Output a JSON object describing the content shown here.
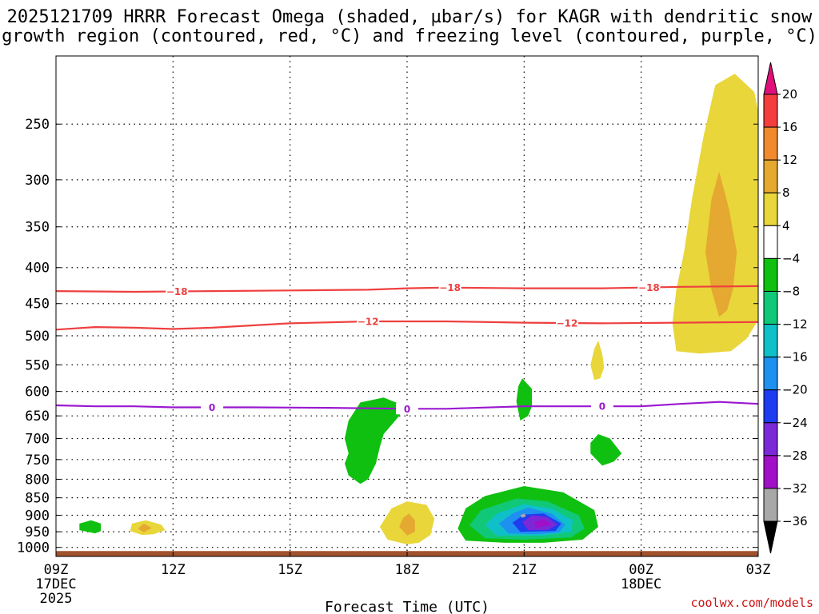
{
  "chart_data": {
    "type": "heatmap",
    "title_line1": "2025121709 HRRR Forecast Omega (shaded, µbar/s) for KAGR with dendritic snow",
    "title_line2": "growth region (contoured, red, °C) and freezing level (contoured, purple, °C)",
    "xlabel": "Forecast Time (UTC)",
    "ylabel": "",
    "x_ticks": [
      {
        "hour": 0,
        "label": "09Z",
        "sub1": "17DEC",
        "sub2": "2025"
      },
      {
        "hour": 3,
        "label": "12Z",
        "sub1": "",
        "sub2": ""
      },
      {
        "hour": 6,
        "label": "15Z",
        "sub1": "",
        "sub2": ""
      },
      {
        "hour": 9,
        "label": "18Z",
        "sub1": "",
        "sub2": ""
      },
      {
        "hour": 12,
        "label": "21Z",
        "sub1": "",
        "sub2": ""
      },
      {
        "hour": 15,
        "label": "00Z",
        "sub1": "18DEC",
        "sub2": ""
      },
      {
        "hour": 18,
        "label": "03Z",
        "sub1": "",
        "sub2": ""
      }
    ],
    "xlim_hours": [
      0,
      18
    ],
    "ylim_hPa": [
      1030,
      200
    ],
    "y_scale": "log-pressure",
    "y_ticks": [
      "250",
      "300",
      "350",
      "400",
      "450",
      "500",
      "550",
      "600",
      "650",
      "700",
      "750",
      "800",
      "850",
      "900",
      "950",
      "1000"
    ],
    "grid": true,
    "colorbar_labels": [
      "20",
      "16",
      "12",
      "8",
      "4",
      "−4",
      "−8",
      "−12",
      "−16",
      "−20",
      "−24",
      "−28",
      "−32",
      "−36"
    ],
    "colorbar_colors": [
      "#e0107a",
      "#f43d3d",
      "#f08a2c",
      "#e5a830",
      "#e8d63a",
      "#ffffff",
      "#10c010",
      "#10c878",
      "#10c0c8",
      "#1e90f0",
      "#1e3cf0",
      "#7a28d8",
      "#a010c8",
      "#a8a8a8",
      "#000000"
    ],
    "red_contours": [
      {
        "label": "−18",
        "points": [
          [
            0,
            432
          ],
          [
            2,
            433
          ],
          [
            4,
            432
          ],
          [
            6,
            431
          ],
          [
            8,
            430
          ],
          [
            9,
            428
          ],
          [
            10,
            427
          ],
          [
            12,
            428
          ],
          [
            14,
            428
          ],
          [
            16,
            426
          ],
          [
            18,
            425
          ]
        ],
        "label_hours": [
          3.1,
          10.1,
          15.2
        ]
      },
      {
        "label": "−12",
        "points": [
          [
            0,
            490
          ],
          [
            1,
            486
          ],
          [
            2,
            487
          ],
          [
            3,
            489
          ],
          [
            4,
            487
          ],
          [
            6,
            480
          ],
          [
            8,
            477
          ],
          [
            10,
            477
          ],
          [
            12,
            479
          ],
          [
            14,
            480
          ],
          [
            16,
            479
          ],
          [
            18,
            478
          ]
        ],
        "label_hours": [
          8.0,
          13.1
        ]
      }
    ],
    "purple_contours": [
      {
        "label": "0",
        "points": [
          [
            0,
            628
          ],
          [
            1,
            630
          ],
          [
            2,
            630
          ],
          [
            3,
            632
          ],
          [
            5,
            632
          ],
          [
            7,
            633
          ],
          [
            9,
            635
          ],
          [
            10,
            635
          ],
          [
            12,
            630
          ],
          [
            13,
            630
          ],
          [
            14,
            630
          ],
          [
            15,
            630
          ],
          [
            16,
            625
          ],
          [
            17,
            621
          ],
          [
            18,
            625
          ]
        ],
        "label_hours": [
          4.0,
          9.0,
          14.0
        ]
      }
    ],
    "omega_regions": [
      {
        "value_range": [
          4,
          8
        ],
        "color": "#e8d63a",
        "points": [
          [
            15.9,
            526
          ],
          [
            15.8,
            480
          ],
          [
            15.9,
            430
          ],
          [
            16.1,
            380
          ],
          [
            16.3,
            320
          ],
          [
            16.6,
            260
          ],
          [
            16.9,
            220
          ],
          [
            17.4,
            212
          ],
          [
            17.9,
            225
          ],
          [
            18.0,
            240
          ],
          [
            18.0,
            475
          ],
          [
            17.7,
            505
          ],
          [
            17.3,
            526
          ],
          [
            16.5,
            530
          ]
        ]
      },
      {
        "value_range": [
          8,
          12
        ],
        "color": "#e5a830",
        "points": [
          [
            17.0,
            470
          ],
          [
            16.8,
            430
          ],
          [
            16.65,
            380
          ],
          [
            16.8,
            320
          ],
          [
            17.0,
            292
          ],
          [
            17.25,
            330
          ],
          [
            17.45,
            380
          ],
          [
            17.35,
            430
          ],
          [
            17.2,
            460
          ]
        ]
      },
      {
        "value_range": [
          4,
          8
        ],
        "color": "#e8d63a",
        "points": [
          [
            13.8,
            578
          ],
          [
            13.7,
            550
          ],
          [
            13.8,
            522
          ],
          [
            13.9,
            508
          ],
          [
            14.0,
            530
          ],
          [
            14.05,
            555
          ],
          [
            13.95,
            575
          ]
        ]
      },
      {
        "value_range": [
          -8,
          -4
        ],
        "color": "#10c010",
        "points": [
          [
            7.8,
            812
          ],
          [
            7.5,
            790
          ],
          [
            7.4,
            760
          ],
          [
            7.5,
            735
          ],
          [
            7.4,
            700
          ],
          [
            7.5,
            660
          ],
          [
            7.8,
            622
          ],
          [
            8.4,
            612
          ],
          [
            8.9,
            628
          ],
          [
            8.8,
            650
          ],
          [
            8.4,
            690
          ],
          [
            8.3,
            720
          ],
          [
            8.2,
            760
          ],
          [
            8.0,
            800
          ]
        ]
      },
      {
        "value_range": [
          -8,
          -4
        ],
        "color": "#10c010",
        "points": [
          [
            11.9,
            660
          ],
          [
            11.8,
            620
          ],
          [
            11.85,
            590
          ],
          [
            11.95,
            575
          ],
          [
            12.2,
            595
          ],
          [
            12.2,
            630
          ],
          [
            12.1,
            650
          ]
        ]
      },
      {
        "value_range": [
          -8,
          -4
        ],
        "color": "#10c010",
        "points": [
          [
            14.0,
            765
          ],
          [
            13.7,
            735
          ],
          [
            13.7,
            710
          ],
          [
            13.9,
            690
          ],
          [
            14.2,
            700
          ],
          [
            14.5,
            735
          ],
          [
            14.3,
            755
          ]
        ]
      },
      {
        "value_range": [
          -8,
          -4
        ],
        "color": "#10c010",
        "points": [
          [
            1.0,
            955
          ],
          [
            0.6,
            945
          ],
          [
            0.6,
            925
          ],
          [
            0.9,
            915
          ],
          [
            1.15,
            925
          ],
          [
            1.15,
            948
          ]
        ]
      },
      {
        "value_range": [
          4,
          8
        ],
        "color": "#e8d63a",
        "points": [
          [
            2.2,
            960
          ],
          [
            1.9,
            948
          ],
          [
            1.95,
            925
          ],
          [
            2.3,
            915
          ],
          [
            2.7,
            928
          ],
          [
            2.8,
            945
          ],
          [
            2.5,
            958
          ]
        ]
      },
      {
        "value_range": [
          8,
          12
        ],
        "color": "#e5a830",
        "points": [
          [
            2.25,
            952
          ],
          [
            2.1,
            940
          ],
          [
            2.25,
            925
          ],
          [
            2.45,
            938
          ]
        ]
      },
      {
        "value_range": [
          4,
          8
        ],
        "color": "#e8d63a",
        "points": [
          [
            9.0,
            990
          ],
          [
            8.5,
            975
          ],
          [
            8.3,
            935
          ],
          [
            8.6,
            880
          ],
          [
            9.0,
            860
          ],
          [
            9.5,
            870
          ],
          [
            9.7,
            910
          ],
          [
            9.6,
            960
          ],
          [
            9.3,
            985
          ]
        ]
      },
      {
        "value_range": [
          8,
          12
        ],
        "color": "#e5a830",
        "points": [
          [
            9.0,
            962
          ],
          [
            8.8,
            935
          ],
          [
            8.9,
            908
          ],
          [
            9.05,
            895
          ],
          [
            9.2,
            915
          ],
          [
            9.2,
            950
          ]
        ]
      },
      {
        "value_range": [
          -8,
          -4
        ],
        "color": "#10c010",
        "points": [
          [
            10.5,
            978
          ],
          [
            10.3,
            940
          ],
          [
            10.5,
            880
          ],
          [
            11.0,
            845
          ],
          [
            12.0,
            818
          ],
          [
            13.0,
            835
          ],
          [
            13.8,
            885
          ],
          [
            13.9,
            935
          ],
          [
            13.5,
            975
          ],
          [
            12.5,
            985
          ],
          [
            11.5,
            985
          ]
        ]
      },
      {
        "value_range": [
          -12,
          -8
        ],
        "color": "#10c878",
        "points": [
          [
            11.0,
            970
          ],
          [
            10.6,
            930
          ],
          [
            10.9,
            885
          ],
          [
            11.8,
            852
          ],
          [
            12.6,
            860
          ],
          [
            13.4,
            900
          ],
          [
            13.55,
            940
          ],
          [
            13.2,
            968
          ],
          [
            12.0,
            975
          ]
        ]
      },
      {
        "value_range": [
          -16,
          -12
        ],
        "color": "#10c0c8",
        "points": [
          [
            11.3,
            962
          ],
          [
            11.0,
            930
          ],
          [
            11.3,
            895
          ],
          [
            12.0,
            868
          ],
          [
            12.7,
            880
          ],
          [
            13.25,
            915
          ],
          [
            13.2,
            950
          ],
          [
            12.5,
            962
          ]
        ]
      },
      {
        "value_range": [
          -20,
          -16
        ],
        "color": "#1e90f0",
        "points": [
          [
            11.6,
            955
          ],
          [
            11.35,
            925
          ],
          [
            11.7,
            895
          ],
          [
            12.1,
            878
          ],
          [
            12.7,
            895
          ],
          [
            13.05,
            928
          ],
          [
            12.9,
            952
          ],
          [
            12.3,
            958
          ]
        ]
      },
      {
        "value_range": [
          -24,
          -20
        ],
        "color": "#1e3cf0",
        "points": [
          [
            11.9,
            950
          ],
          [
            11.7,
            922
          ],
          [
            12.0,
            898
          ],
          [
            12.5,
            895
          ],
          [
            12.95,
            925
          ],
          [
            12.8,
            948
          ]
        ]
      },
      {
        "value_range": [
          -28,
          -24
        ],
        "color": "#7a28d8",
        "points": [
          [
            12.1,
            945
          ],
          [
            11.95,
            920
          ],
          [
            12.2,
            900
          ],
          [
            12.6,
            905
          ],
          [
            12.85,
            928
          ],
          [
            12.6,
            945
          ]
        ]
      },
      {
        "value_range": [
          -32,
          -28
        ],
        "color": "#a010c8",
        "points": [
          [
            12.3,
            938
          ],
          [
            12.25,
            920
          ],
          [
            12.5,
            912
          ],
          [
            12.7,
            928
          ]
        ]
      },
      {
        "value_range": [
          -36,
          -32
        ],
        "color": "#a8a8a8",
        "points": [
          [
            11.95,
            908
          ],
          [
            11.9,
            900
          ],
          [
            12.0,
            895
          ],
          [
            12.05,
            903
          ]
        ]
      }
    ],
    "ground_color": "#a0522d"
  },
  "footer": {
    "credit": "coolwx.com/models"
  }
}
